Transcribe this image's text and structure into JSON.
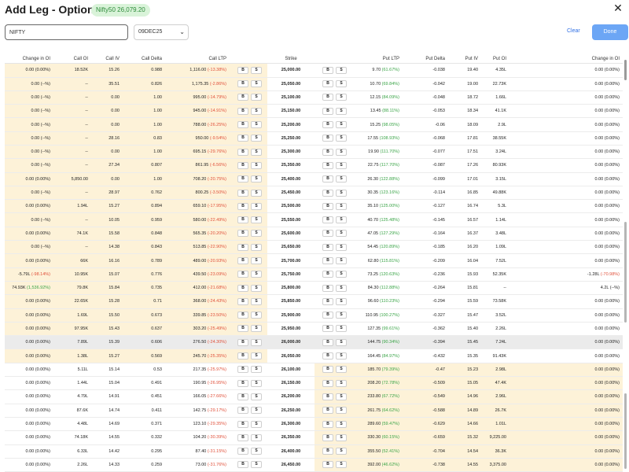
{
  "header": {
    "title": "Add Leg - Option Chain",
    "badge": "Nifty50 26,079.20",
    "close_icon": "close-icon"
  },
  "controls": {
    "symbol_value": "NIFTY",
    "expiry_value": "09DEC25",
    "clear_label": "Clear",
    "done_label": "Done"
  },
  "colors": {
    "itm": "#fdf2d8",
    "atm": "#ebebeb",
    "positive": "#3aa447",
    "negative": "#e0503a",
    "accent": "#2f6fe4"
  },
  "table": {
    "headers": {
      "call_change_oi": "Change in OI",
      "call_oi": "Call OI",
      "call_iv": "Call IV",
      "call_delta": "Call Delta",
      "call_ltp": "Call LTP",
      "strike": "Strike",
      "put_ltp": "Put LTP",
      "put_delta": "Put Delta",
      "put_iv": "Put IV",
      "put_oi": "Put OI",
      "put_change_oi": "Change in OI"
    },
    "buy_label": "B",
    "sell_label": "S",
    "rows": [
      {
        "chg": "0.00",
        "chgp": "(0.00%)",
        "chgd": "",
        "oi": "18.52K",
        "iv": "15.26",
        "delta": "0.988",
        "ltp": "1,116.00",
        "ltpp": "(-13.38%)",
        "ltpd": "neg",
        "strike": "25,000.00",
        "pltp": "9.70",
        "pltpp": "(61.67%)",
        "pltpd": "pos",
        "pdelta": "-0.038",
        "piv": "19.40",
        "poi": "4.35L",
        "pchg": "0.00",
        "pchgp": "(0.00%)",
        "pchgd": ""
      },
      {
        "chg": "0.00",
        "chgp": "(--%)",
        "chgd": "",
        "oi": "--",
        "iv": "35.51",
        "delta": "0.826",
        "ltp": "1,175.35",
        "ltpp": "(-2.86%)",
        "ltpd": "neg",
        "strike": "25,050.00",
        "pltp": "10.70",
        "pltpp": "(69.84%)",
        "pltpd": "pos",
        "pdelta": "-0.042",
        "piv": "19.00",
        "poi": "22.73K",
        "pchg": "0.00",
        "pchgp": "(0.00%)",
        "pchgd": ""
      },
      {
        "chg": "0.00",
        "chgp": "(--%)",
        "chgd": "",
        "oi": "--",
        "iv": "0.00",
        "delta": "1.00",
        "ltp": "995.00",
        "ltpp": "(-14.79%)",
        "ltpd": "neg",
        "strike": "25,100.00",
        "pltp": "12.15",
        "pltpp": "(84.09%)",
        "pltpd": "pos",
        "pdelta": "-0.048",
        "piv": "18.72",
        "poi": "1.66L",
        "pchg": "0.00",
        "pchgp": "(0.00%)",
        "pchgd": ""
      },
      {
        "chg": "0.00",
        "chgp": "(--%)",
        "chgd": "",
        "oi": "--",
        "iv": "0.00",
        "delta": "1.00",
        "ltp": "945.00",
        "ltpp": "(-14.91%)",
        "ltpd": "neg",
        "strike": "25,150.00",
        "pltp": "13.45",
        "pltpp": "(88.11%)",
        "pltpd": "pos",
        "pdelta": "-0.053",
        "piv": "18.34",
        "poi": "41.1K",
        "pchg": "0.00",
        "pchgp": "(0.00%)",
        "pchgd": ""
      },
      {
        "chg": "0.00",
        "chgp": "(--%)",
        "chgd": "",
        "oi": "--",
        "iv": "0.00",
        "delta": "1.00",
        "ltp": "788.00",
        "ltpp": "(-26.25%)",
        "ltpd": "neg",
        "strike": "25,200.00",
        "pltp": "15.25",
        "pltpp": "(98.05%)",
        "pltpd": "pos",
        "pdelta": "-0.06",
        "piv": "18.09",
        "poi": "2.9L",
        "pchg": "0.00",
        "pchgp": "(0.00%)",
        "pchgd": ""
      },
      {
        "chg": "0.00",
        "chgp": "(--%)",
        "chgd": "",
        "oi": "--",
        "iv": "28.16",
        "delta": "0.83",
        "ltp": "950.00",
        "ltpp": "(-9.54%)",
        "ltpd": "neg",
        "strike": "25,250.00",
        "pltp": "17.55",
        "pltpp": "(108.93%)",
        "pltpd": "pos",
        "pdelta": "-0.068",
        "piv": "17.81",
        "poi": "38.55K",
        "pchg": "0.00",
        "pchgp": "(0.00%)",
        "pchgd": ""
      },
      {
        "chg": "0.00",
        "chgp": "(--%)",
        "chgd": "",
        "oi": "--",
        "iv": "0.00",
        "delta": "1.00",
        "ltp": "695.15",
        "ltpp": "(-29.76%)",
        "ltpd": "neg",
        "strike": "25,300.00",
        "pltp": "19.90",
        "pltpp": "(111.70%)",
        "pltpd": "pos",
        "pdelta": "-0.077",
        "piv": "17.51",
        "poi": "3.24L",
        "pchg": "0.00",
        "pchgp": "(0.00%)",
        "pchgd": ""
      },
      {
        "chg": "0.00",
        "chgp": "(--%)",
        "chgd": "",
        "oi": "--",
        "iv": "27.34",
        "delta": "0.807",
        "ltp": "861.95",
        "ltpp": "(-6.56%)",
        "ltpd": "neg",
        "strike": "25,350.00",
        "pltp": "22.75",
        "pltpp": "(117.70%)",
        "pltpd": "pos",
        "pdelta": "-0.087",
        "piv": "17.26",
        "poi": "80.93K",
        "pchg": "0.00",
        "pchgp": "(0.00%)",
        "pchgd": ""
      },
      {
        "chg": "0.00",
        "chgp": "(0.00%)",
        "chgd": "",
        "oi": "5,850.00",
        "iv": "0.00",
        "delta": "1.00",
        "ltp": "708.20",
        "ltpp": "(-20.75%)",
        "ltpd": "neg",
        "strike": "25,400.00",
        "pltp": "26.30",
        "pltpp": "(122.88%)",
        "pltpd": "pos",
        "pdelta": "-0.099",
        "piv": "17.01",
        "poi": "3.15L",
        "pchg": "0.00",
        "pchgp": "(0.00%)",
        "pchgd": ""
      },
      {
        "chg": "0.00",
        "chgp": "(--%)",
        "chgd": "",
        "oi": "--",
        "iv": "28.97",
        "delta": "0.762",
        "ltp": "800.25",
        "ltpp": "(-3.50%)",
        "ltpd": "neg",
        "strike": "25,450.00",
        "pltp": "30.35",
        "pltpp": "(123.16%)",
        "pltpd": "pos",
        "pdelta": "-0.114",
        "piv": "16.85",
        "poi": "49.88K",
        "pchg": "0.00",
        "pchgp": "(0.00%)",
        "pchgd": ""
      },
      {
        "chg": "0.00",
        "chgp": "(0.00%)",
        "chgd": "",
        "oi": "1.94L",
        "iv": "15.27",
        "delta": "0.894",
        "ltp": "659.10",
        "ltpp": "(-17.95%)",
        "ltpd": "neg",
        "strike": "25,500.00",
        "pltp": "35.10",
        "pltpp": "(125.00%)",
        "pltpd": "pos",
        "pdelta": "-0.127",
        "piv": "16.74",
        "poi": "5.3L",
        "pchg": "0.00",
        "pchgp": "(0.00%)",
        "pchgd": ""
      },
      {
        "chg": "0.00",
        "chgp": "(--%)",
        "chgd": "",
        "oi": "--",
        "iv": "10.05",
        "delta": "0.959",
        "ltp": "580.00",
        "ltpp": "(-22.49%)",
        "ltpd": "neg",
        "strike": "25,550.00",
        "pltp": "40.70",
        "pltpp": "(125.48%)",
        "pltpd": "pos",
        "pdelta": "-0.145",
        "piv": "16.57",
        "poi": "1.14L",
        "pchg": "0.00",
        "pchgp": "(0.00%)",
        "pchgd": ""
      },
      {
        "chg": "0.00",
        "chgp": "(0.00%)",
        "chgd": "",
        "oi": "74.1K",
        "iv": "15.58",
        "delta": "0.848",
        "ltp": "565.35",
        "ltpp": "(-20.20%)",
        "ltpd": "neg",
        "strike": "25,600.00",
        "pltp": "47.05",
        "pltpp": "(127.29%)",
        "pltpd": "pos",
        "pdelta": "-0.164",
        "piv": "16.37",
        "poi": "3.48L",
        "pchg": "0.00",
        "pchgp": "(0.00%)",
        "pchgd": ""
      },
      {
        "chg": "0.00",
        "chgp": "(--%)",
        "chgd": "",
        "oi": "--",
        "iv": "14.38",
        "delta": "0.843",
        "ltp": "513.85",
        "ltpp": "(-22.90%)",
        "ltpd": "neg",
        "strike": "25,650.00",
        "pltp": "54.45",
        "pltpp": "(120.89%)",
        "pltpd": "pos",
        "pdelta": "-0.185",
        "piv": "16.20",
        "poi": "1.09L",
        "pchg": "0.00",
        "pchgp": "(0.00%)",
        "pchgd": ""
      },
      {
        "chg": "0.00",
        "chgp": "(0.00%)",
        "chgd": "",
        "oi": "66K",
        "iv": "16.16",
        "delta": "0.789",
        "ltp": "489.00",
        "ltpp": "(-20.93%)",
        "ltpd": "neg",
        "strike": "25,700.00",
        "pltp": "62.80",
        "pltpp": "(115.81%)",
        "pltpd": "pos",
        "pdelta": "-0.209",
        "piv": "16.04",
        "poi": "7.52L",
        "pchg": "0.00",
        "pchgp": "(0.00%)",
        "pchgd": ""
      },
      {
        "chg": "-5.79L",
        "chgp": "(-98.14%)",
        "chgd": "neg",
        "oi": "10.95K",
        "iv": "15.07",
        "delta": "0.776",
        "ltp": "439.50",
        "ltpp": "(-23.09%)",
        "ltpd": "neg",
        "strike": "25,750.00",
        "pltp": "73.25",
        "pltpp": "(120.63%)",
        "pltpd": "pos",
        "pdelta": "-0.236",
        "piv": "15.93",
        "poi": "52.35K",
        "pchg": "-1.28L",
        "pchgp": "(-70.98%)",
        "pchgd": "neg"
      },
      {
        "chg": "74.93K",
        "chgp": "(1,536.92%)",
        "chgd": "pos",
        "oi": "79.8K",
        "iv": "15.84",
        "delta": "0.735",
        "ltp": "412.00",
        "ltpp": "(-21.68%)",
        "ltpd": "neg",
        "strike": "25,800.00",
        "pltp": "84.30",
        "pltpp": "(112.88%)",
        "pltpd": "pos",
        "pdelta": "-0.264",
        "piv": "15.81",
        "poi": "--",
        "pchg": "4.2L",
        "pchgp": "(--%)",
        "pchgd": ""
      },
      {
        "chg": "0.00",
        "chgp": "(0.00%)",
        "chgd": "",
        "oi": "22.65K",
        "iv": "15.28",
        "delta": "0.71",
        "ltp": "368.00",
        "ltpp": "(-24.43%)",
        "ltpd": "neg",
        "strike": "25,850.00",
        "pltp": "96.60",
        "pltpp": "(110.23%)",
        "pltpd": "pos",
        "pdelta": "-0.294",
        "piv": "15.59",
        "poi": "73.58K",
        "pchg": "0.00",
        "pchgp": "(0.00%)",
        "pchgd": ""
      },
      {
        "chg": "0.00",
        "chgp": "(0.00%)",
        "chgd": "",
        "oi": "1.69L",
        "iv": "15.50",
        "delta": "0.673",
        "ltp": "339.85",
        "ltpp": "(-23.50%)",
        "ltpd": "neg",
        "strike": "25,900.00",
        "pltp": "110.95",
        "pltpp": "(100.27%)",
        "pltpd": "pos",
        "pdelta": "-0.327",
        "piv": "15.47",
        "poi": "3.52L",
        "pchg": "0.00",
        "pchgp": "(0.00%)",
        "pchgd": ""
      },
      {
        "chg": "0.00",
        "chgp": "(0.00%)",
        "chgd": "",
        "oi": "97.95K",
        "iv": "15.43",
        "delta": "0.637",
        "ltp": "303.20",
        "ltpp": "(-25.49%)",
        "ltpd": "neg",
        "strike": "25,950.00",
        "pltp": "127.35",
        "pltpp": "(99.61%)",
        "pltpd": "pos",
        "pdelta": "-0.362",
        "piv": "15.40",
        "poi": "2.26L",
        "pchg": "0.00",
        "pchgp": "(0.00%)",
        "pchgd": ""
      },
      {
        "chg": "0.00",
        "chgp": "(0.00%)",
        "chgd": "",
        "oi": "7.89L",
        "iv": "15.39",
        "delta": "0.606",
        "ltp": "276.50",
        "ltpp": "(-24.30%)",
        "ltpd": "neg",
        "strike": "26,000.00",
        "pltp": "144.75",
        "pltpp": "(90.34%)",
        "pltpd": "pos",
        "pdelta": "-0.394",
        "piv": "15.45",
        "poi": "7.24L",
        "pchg": "0.00",
        "pchgp": "(0.00%)",
        "pchgd": ""
      },
      {
        "chg": "0.00",
        "chgp": "(0.00%)",
        "chgd": "",
        "oi": "1.38L",
        "iv": "15.27",
        "delta": "0.569",
        "ltp": "245.70",
        "ltpp": "(-25.35%)",
        "ltpd": "neg",
        "strike": "26,050.00",
        "pltp": "164.45",
        "pltpp": "(84.97%)",
        "pltpd": "pos",
        "pdelta": "-0.432",
        "piv": "15.35",
        "poi": "91.43K",
        "pchg": "0.00",
        "pchgp": "(0.00%)",
        "pchgd": ""
      },
      {
        "chg": "0.00",
        "chgp": "(0.00%)",
        "chgd": "",
        "oi": "5.11L",
        "iv": "15.14",
        "delta": "0.53",
        "ltp": "217.35",
        "ltpp": "(-25.97%)",
        "ltpd": "neg",
        "strike": "26,100.00",
        "pltp": "185.70",
        "pltpp": "(79.39%)",
        "pltpd": "pos",
        "pdelta": "-0.47",
        "piv": "15.23",
        "poi": "2.98L",
        "pchg": "0.00",
        "pchgp": "(0.00%)",
        "pchgd": ""
      },
      {
        "chg": "0.00",
        "chgp": "(0.00%)",
        "chgd": "",
        "oi": "1.44L",
        "iv": "15.04",
        "delta": "0.491",
        "ltp": "190.95",
        "ltpp": "(-26.95%)",
        "ltpd": "neg",
        "strike": "26,150.00",
        "pltp": "208.20",
        "pltpp": "(72.78%)",
        "pltpd": "pos",
        "pdelta": "-0.509",
        "piv": "15.05",
        "poi": "47.4K",
        "pchg": "0.00",
        "pchgp": "(0.00%)",
        "pchgd": ""
      },
      {
        "chg": "0.00",
        "chgp": "(0.00%)",
        "chgd": "",
        "oi": "4.79L",
        "iv": "14.91",
        "delta": "0.451",
        "ltp": "166.05",
        "ltpp": "(-27.66%)",
        "ltpd": "neg",
        "strike": "26,200.00",
        "pltp": "233.80",
        "pltpp": "(67.72%)",
        "pltpd": "pos",
        "pdelta": "-0.549",
        "piv": "14.96",
        "poi": "2.96L",
        "pchg": "0.00",
        "pchgp": "(0.00%)",
        "pchgd": ""
      },
      {
        "chg": "0.00",
        "chgp": "(0.00%)",
        "chgd": "",
        "oi": "87.6K",
        "iv": "14.74",
        "delta": "0.411",
        "ltp": "142.75",
        "ltpp": "(-29.17%)",
        "ltpd": "neg",
        "strike": "26,250.00",
        "pltp": "261.75",
        "pltpp": "(64.62%)",
        "pltpd": "pos",
        "pdelta": "-0.588",
        "piv": "14.89",
        "poi": "26.7K",
        "pchg": "0.00",
        "pchgp": "(0.00%)",
        "pchgd": ""
      },
      {
        "chg": "0.00",
        "chgp": "(0.00%)",
        "chgd": "",
        "oi": "4.48L",
        "iv": "14.69",
        "delta": "0.371",
        "ltp": "123.10",
        "ltpp": "(-29.35%)",
        "ltpd": "neg",
        "strike": "26,300.00",
        "pltp": "289.60",
        "pltpp": "(59.47%)",
        "pltpd": "pos",
        "pdelta": "-0.629",
        "piv": "14.66",
        "poi": "1.01L",
        "pchg": "0.00",
        "pchgp": "(0.00%)",
        "pchgd": ""
      },
      {
        "chg": "0.00",
        "chgp": "(0.00%)",
        "chgd": "",
        "oi": "74.18K",
        "iv": "14.55",
        "delta": "0.332",
        "ltp": "104.20",
        "ltpp": "(-30.39%)",
        "ltpd": "neg",
        "strike": "26,350.00",
        "pltp": "330.30",
        "pltpp": "(60.15%)",
        "pltpd": "pos",
        "pdelta": "-0.659",
        "piv": "15.32",
        "poi": "9,225.00",
        "pchg": "0.00",
        "pchgp": "(0.00%)",
        "pchgd": ""
      },
      {
        "chg": "0.00",
        "chgp": "(0.00%)",
        "chgd": "",
        "oi": "6.33L",
        "iv": "14.42",
        "delta": "0.295",
        "ltp": "87.40",
        "ltpp": "(-31.15%)",
        "ltpd": "neg",
        "strike": "26,400.00",
        "pltp": "355.50",
        "pltpp": "(52.41%)",
        "pltpd": "pos",
        "pdelta": "-0.704",
        "piv": "14.54",
        "poi": "36.3K",
        "pchg": "0.00",
        "pchgp": "(0.00%)",
        "pchgd": ""
      },
      {
        "chg": "0.00",
        "chgp": "(0.00%)",
        "chgd": "",
        "oi": "2.26L",
        "iv": "14.33",
        "delta": "0.259",
        "ltp": "73.00",
        "ltpp": "(-31.76%)",
        "ltpd": "neg",
        "strike": "26,450.00",
        "pltp": "392.00",
        "pltpp": "(46.62%)",
        "pltpd": "pos",
        "pdelta": "-0.738",
        "piv": "14.55",
        "poi": "3,375.00",
        "pchg": "0.00",
        "pchgp": "(0.00%)",
        "pchgd": ""
      }
    ]
  }
}
